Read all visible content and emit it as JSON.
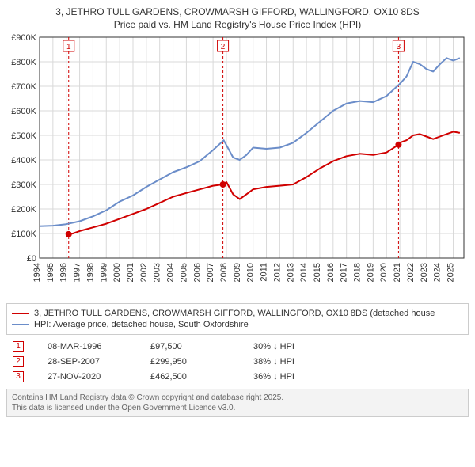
{
  "title_line1": "3, JETHRO TULL GARDENS, CROWMARSH GIFFORD, WALLINGFORD, OX10 8DS",
  "title_line2": "Price paid vs. HM Land Registry's House Price Index (HPI)",
  "chart": {
    "type": "line",
    "background_color": "#ffffff",
    "grid_color": "#d9d9d9",
    "axis_color": "#333333",
    "axis_fontsize": 11,
    "xlim": [
      1994,
      2025.8
    ],
    "ylim": [
      0,
      900000
    ],
    "ytick_step": 100000,
    "ytick_labels": [
      "£0",
      "£100K",
      "£200K",
      "£300K",
      "£400K",
      "£500K",
      "£600K",
      "£700K",
      "£800K",
      "£900K"
    ],
    "xticks": [
      1994,
      1995,
      1996,
      1997,
      1998,
      1999,
      2000,
      2001,
      2002,
      2003,
      2004,
      2005,
      2006,
      2007,
      2008,
      2009,
      2010,
      2011,
      2012,
      2013,
      2014,
      2015,
      2016,
      2017,
      2018,
      2019,
      2020,
      2021,
      2022,
      2023,
      2024,
      2025
    ],
    "series": [
      {
        "name": "property",
        "label": "3, JETHRO TULL GARDENS, CROWMARSH GIFFORD, WALLINGFORD, OX10 8DS (detached house",
        "color": "#d00000",
        "line_width": 2,
        "data": [
          [
            1996.18,
            97000
          ],
          [
            1996.5,
            100000
          ],
          [
            1997,
            110000
          ],
          [
            1998,
            125000
          ],
          [
            1999,
            140000
          ],
          [
            2000,
            160000
          ],
          [
            2001,
            180000
          ],
          [
            2002,
            200000
          ],
          [
            2003,
            225000
          ],
          [
            2004,
            250000
          ],
          [
            2005,
            265000
          ],
          [
            2006,
            280000
          ],
          [
            2007,
            295000
          ],
          [
            2007.74,
            300000
          ],
          [
            2008,
            310000
          ],
          [
            2008.5,
            260000
          ],
          [
            2009,
            240000
          ],
          [
            2009.5,
            260000
          ],
          [
            2010,
            280000
          ],
          [
            2011,
            290000
          ],
          [
            2012,
            295000
          ],
          [
            2013,
            300000
          ],
          [
            2014,
            330000
          ],
          [
            2015,
            365000
          ],
          [
            2016,
            395000
          ],
          [
            2017,
            415000
          ],
          [
            2018,
            425000
          ],
          [
            2019,
            420000
          ],
          [
            2020,
            430000
          ],
          [
            2020.9,
            462000
          ],
          [
            2021,
            470000
          ],
          [
            2021.5,
            480000
          ],
          [
            2022,
            500000
          ],
          [
            2022.5,
            505000
          ],
          [
            2023,
            495000
          ],
          [
            2023.5,
            485000
          ],
          [
            2024,
            495000
          ],
          [
            2024.5,
            505000
          ],
          [
            2025,
            515000
          ],
          [
            2025.5,
            510000
          ]
        ]
      },
      {
        "name": "hpi",
        "label": "HPI: Average price, detached house, South Oxfordshire",
        "color": "#6b8dc9",
        "line_width": 2,
        "data": [
          [
            1994,
            130000
          ],
          [
            1995,
            132000
          ],
          [
            1996,
            138000
          ],
          [
            1997,
            150000
          ],
          [
            1998,
            170000
          ],
          [
            1999,
            195000
          ],
          [
            2000,
            230000
          ],
          [
            2001,
            255000
          ],
          [
            2002,
            290000
          ],
          [
            2003,
            320000
          ],
          [
            2004,
            350000
          ],
          [
            2005,
            370000
          ],
          [
            2006,
            395000
          ],
          [
            2007,
            440000
          ],
          [
            2007.8,
            480000
          ],
          [
            2008,
            460000
          ],
          [
            2008.5,
            410000
          ],
          [
            2009,
            400000
          ],
          [
            2009.5,
            420000
          ],
          [
            2010,
            450000
          ],
          [
            2011,
            445000
          ],
          [
            2012,
            450000
          ],
          [
            2013,
            470000
          ],
          [
            2014,
            510000
          ],
          [
            2015,
            555000
          ],
          [
            2016,
            600000
          ],
          [
            2017,
            630000
          ],
          [
            2018,
            640000
          ],
          [
            2019,
            635000
          ],
          [
            2020,
            660000
          ],
          [
            2021,
            710000
          ],
          [
            2021.5,
            740000
          ],
          [
            2022,
            800000
          ],
          [
            2022.5,
            790000
          ],
          [
            2023,
            770000
          ],
          [
            2023.5,
            760000
          ],
          [
            2024,
            790000
          ],
          [
            2024.5,
            815000
          ],
          [
            2025,
            805000
          ],
          [
            2025.5,
            815000
          ]
        ]
      }
    ],
    "markers": [
      {
        "n": "1",
        "x": 1996.18,
        "date": "08-MAR-1996",
        "price": "£97,500",
        "delta": "30% ↓ HPI"
      },
      {
        "n": "2",
        "x": 2007.74,
        "date": "28-SEP-2007",
        "price": "£299,950",
        "delta": "38% ↓ HPI"
      },
      {
        "n": "3",
        "x": 2020.9,
        "date": "27-NOV-2020",
        "price": "£462,500",
        "delta": "36% ↓ HPI"
      }
    ],
    "marker_box_color": "#d00000",
    "marker_line_color": "#d00000",
    "marker_line_dash": "3,3"
  },
  "footer_line1": "Contains HM Land Registry data © Crown copyright and database right 2025.",
  "footer_line2": "This data is licensed under the Open Government Licence v3.0."
}
